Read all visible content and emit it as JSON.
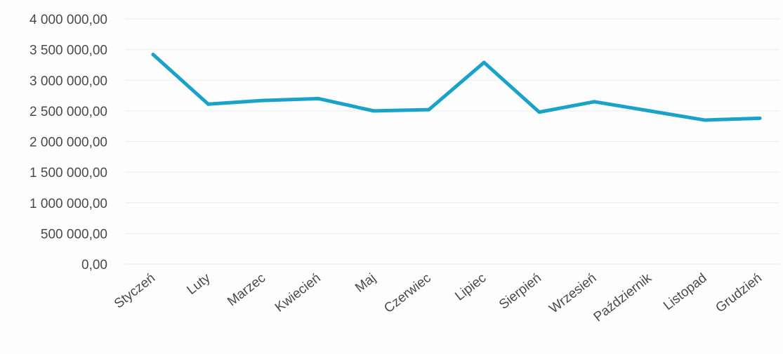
{
  "chart_data": {
    "type": "line",
    "title": "",
    "xlabel": "",
    "ylabel": "",
    "categories": [
      "Styczeń",
      "Luty",
      "Marzec",
      "Kwiecień",
      "Maj",
      "Czerwiec",
      "Lipiec",
      "Sierpień",
      "Wrzesień",
      "Październik",
      "Listopad",
      "Grudzień"
    ],
    "series": [
      {
        "values": [
          3420000,
          2610000,
          2670000,
          2700000,
          2500000,
          2520000,
          3290000,
          2480000,
          2650000,
          2500000,
          2350000,
          2380000
        ]
      }
    ],
    "ylim": [
      0,
      4000000
    ],
    "y_ticks": [
      0,
      500000,
      1000000,
      1500000,
      2000000,
      2500000,
      3000000,
      3500000,
      4000000
    ],
    "y_tick_labels": [
      "0,00",
      "500 000,00",
      "1 000 000,00",
      "1 500 000,00",
      "2 000 000,00",
      "2 500 000,00",
      "3 000 000,00",
      "3 500 000,00",
      "4 000 000,00"
    ],
    "grid": true,
    "legend": "none",
    "line_color": "#1aa3c9"
  }
}
